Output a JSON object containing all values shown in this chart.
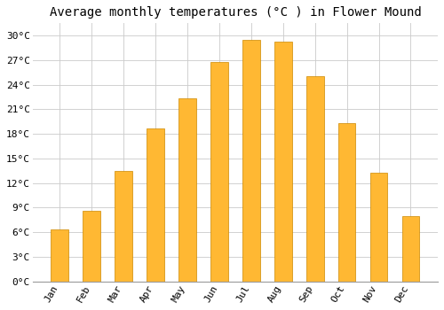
{
  "title": "Average monthly temperatures (°C ) in Flower Mound",
  "months": [
    "Jan",
    "Feb",
    "Mar",
    "Apr",
    "May",
    "Jun",
    "Jul",
    "Aug",
    "Sep",
    "Oct",
    "Nov",
    "Dec"
  ],
  "values": [
    6.3,
    8.6,
    13.5,
    18.7,
    22.3,
    26.8,
    29.5,
    29.3,
    25.0,
    19.3,
    13.3,
    8.0
  ],
  "bar_color": "#FFA500",
  "bar_color2": "#FFB833",
  "bar_edge_color": "#CC8800",
  "ylim": [
    0,
    31.5
  ],
  "yticks": [
    0,
    3,
    6,
    9,
    12,
    15,
    18,
    21,
    24,
    27,
    30
  ],
  "ytick_labels": [
    "0°C",
    "3°C",
    "6°C",
    "9°C",
    "12°C",
    "15°C",
    "18°C",
    "21°C",
    "24°C",
    "27°C",
    "30°C"
  ],
  "background_color": "#FFFFFF",
  "plot_bg_color": "#FFFFFF",
  "grid_color": "#CCCCCC",
  "title_fontsize": 10,
  "tick_fontsize": 8,
  "bar_width": 0.55,
  "font_family": "monospace"
}
